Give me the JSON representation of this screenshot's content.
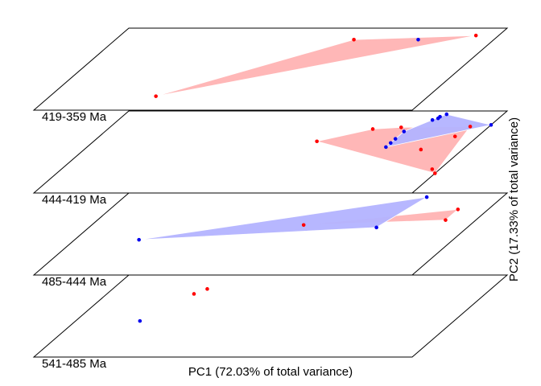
{
  "chart_data": {
    "type": "scatter",
    "xlabel": "PC1 (72.03% of total variance)",
    "ylabel": "PC2 (17.33% of total variance)",
    "colors": {
      "red": "#ff0000",
      "blue": "#0000ee",
      "red_fill": "#ffb3b3",
      "blue_fill": "#b3b3ff"
    },
    "layers": [
      {
        "label": "419-359 Ma",
        "series": [
          {
            "color": "red",
            "points": [
              [
                0.28,
                0.17
              ],
              [
                0.63,
                0.86
              ],
              [
                0.94,
                0.91
              ]
            ]
          },
          {
            "color": "blue",
            "points": [
              [
                0.8,
                0.86
              ]
            ]
          }
        ],
        "hulls": [
          "red"
        ]
      },
      {
        "label": "444-419 Ma",
        "series": [
          {
            "color": "red",
            "points": [
              [
                0.59,
                0.63
              ],
              [
                0.7,
                0.78
              ],
              [
                0.77,
                0.8
              ],
              [
                0.89,
                0.53
              ],
              [
                0.95,
                0.81
              ],
              [
                0.94,
                0.69
              ],
              [
                0.98,
                0.29
              ],
              [
                1.0,
                0.24
              ]
            ]
          },
          {
            "color": "blue",
            "points": [
              [
                0.79,
                0.75
              ],
              [
                0.79,
                0.66
              ],
              [
                0.79,
                0.61
              ],
              [
                0.79,
                0.56
              ],
              [
                0.83,
                0.89
              ],
              [
                0.84,
                0.91
              ],
              [
                0.84,
                0.93
              ],
              [
                0.85,
                0.96
              ],
              [
                1.0,
                0.83
              ]
            ]
          }
        ],
        "hulls": [
          "red",
          "blue"
        ]
      },
      {
        "label": "485-444 Ma",
        "series": [
          {
            "color": "red",
            "points": [
              [
                0.56,
                0.61
              ],
              [
                0.92,
                0.8
              ],
              [
                0.92,
                0.67
              ]
            ]
          },
          {
            "color": "blue",
            "points": [
              [
                0.17,
                0.43
              ],
              [
                0.76,
                0.58
              ],
              [
                0.8,
                0.95
              ]
            ]
          }
        ],
        "hulls": [
          "red",
          "blue"
        ]
      },
      {
        "label": "541-485 Ma",
        "series": [
          {
            "color": "red",
            "points": [
              [
                0.25,
                0.83
              ],
              [
                0.23,
                0.77
              ]
            ]
          },
          {
            "color": "blue",
            "points": [
              [
                0.17,
                0.44
              ]
            ]
          }
        ],
        "hulls": []
      }
    ]
  }
}
